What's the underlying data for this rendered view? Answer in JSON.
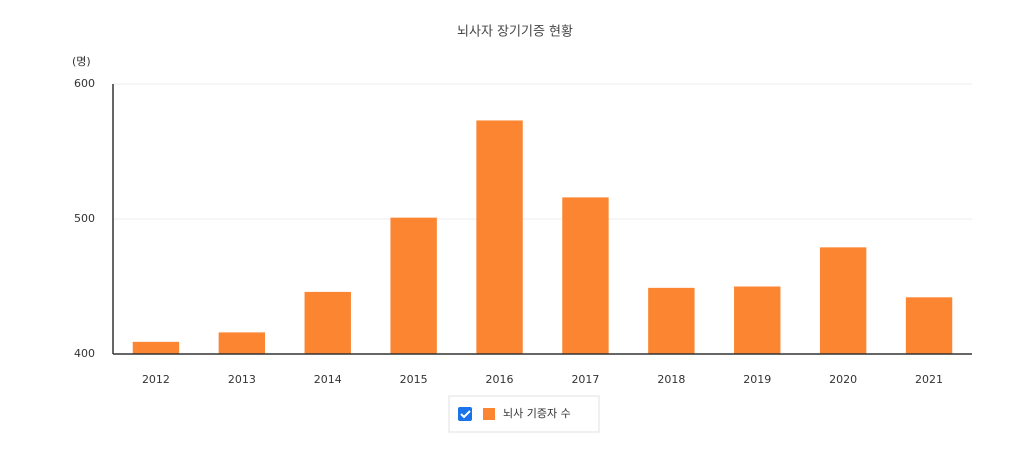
{
  "chart_data": {
    "type": "bar",
    "title": "뇌사자 장기기증 현황",
    "y_unit": "(명)",
    "categories": [
      "2012",
      "2013",
      "2014",
      "2015",
      "2016",
      "2017",
      "2018",
      "2019",
      "2020",
      "2021"
    ],
    "series": [
      {
        "name": "뇌사 기증자 수",
        "color": "#fb8531",
        "values": [
          409,
          416,
          446,
          501,
          573,
          516,
          449,
          450,
          479,
          442
        ]
      }
    ],
    "ylim": [
      400,
      600
    ],
    "yticks": [
      400,
      500,
      600
    ],
    "grid": true,
    "legend": "bottom"
  }
}
